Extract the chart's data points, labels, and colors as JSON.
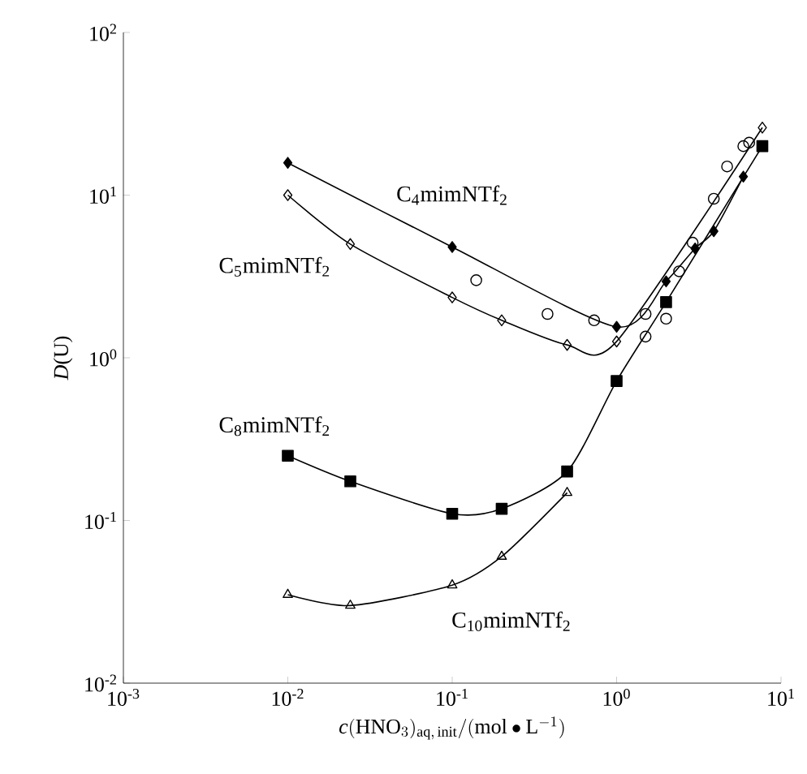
{
  "chart_data": {
    "type": "line",
    "xlabel": "\\mathit{c}(\\mathrm{HNO}_{3})_{\\mathrm{aq,\\,init}}/(\\mathrm{mol}\\bullet\\mathrm{L}^{-1})",
    "ylabel": "*D*(U)",
    "log": "xy",
    "grid": false,
    "legend": false,
    "line_style": "solid",
    "xlim": [
      0.001,
      10
    ],
    "ylim": [
      0.01,
      100
    ],
    "xticks": [
      {
        "value": 0.001,
        "label": "10$^{-3}$"
      },
      {
        "value": 0.01,
        "label": "10$^{-2}$"
      },
      {
        "value": 0.1,
        "label": "10$^{-1}$"
      },
      {
        "value": 1,
        "label": "10$^{0}$"
      },
      {
        "value": 10,
        "label": "10$^{1}$"
      }
    ],
    "yticks": [
      {
        "value": 0.01,
        "label": "10$^{-2}$"
      },
      {
        "value": 0.1,
        "label": "10$^{-1}$"
      },
      {
        "value": 1,
        "label": "10$^{0}$"
      },
      {
        "value": 10,
        "label": "10$^{1}$"
      },
      {
        "value": 100,
        "label": "10$^{2}$"
      }
    ],
    "series": [
      {
        "name": "C$_{4}$mimNTf$_{2}$",
        "type": "line",
        "marker": "diamond",
        "color": "#000000",
        "x": [
          0.01,
          0.1,
          1,
          2,
          3,
          3.9,
          5.9
        ],
        "values": [
          15.8,
          4.8,
          1.55,
          2.95,
          4.7,
          6,
          13
        ]
      },
      {
        "name": "C$_{5}$mimNTf$_{2}$",
        "type": "line",
        "marker": "diamond open",
        "color": "#000000",
        "x": [
          0.01,
          0.024,
          0.1,
          0.2,
          0.5,
          1,
          7.7
        ],
        "values": [
          10,
          5,
          2.35,
          1.7,
          1.2,
          1.26,
          26
        ]
      },
      {
        "name": "C$_{8}$mimNTf$_{2}$",
        "type": "line",
        "marker": "square",
        "color": "#000000",
        "x": [
          0.01,
          0.024,
          0.1,
          0.2,
          0.5,
          1,
          2,
          7.7
        ],
        "values": [
          0.25,
          0.174,
          0.11,
          0.118,
          0.2,
          0.72,
          2.2,
          20
        ]
      },
      {
        "name": "C$_{10}$mimNTf$_{2}$",
        "type": "line",
        "marker": "triangle open",
        "color": "#000000",
        "x": [
          0.01,
          0.024,
          0.1,
          0.2,
          0.5
        ],
        "values": [
          0.035,
          0.03,
          0.04,
          0.06,
          0.148
        ]
      },
      {
        "type": "scatter",
        "marker": "circle open",
        "color": "#000000",
        "x": [
          0.14,
          0.38,
          0.73,
          1.5,
          1.5,
          2,
          2.4,
          2.9,
          3.9,
          4.7,
          5.9,
          6.4
        ],
        "values": [
          3.0,
          1.86,
          1.7,
          1.86,
          1.35,
          1.74,
          3.4,
          5.1,
          9.5,
          15,
          20,
          21
        ]
      }
    ]
  }
}
